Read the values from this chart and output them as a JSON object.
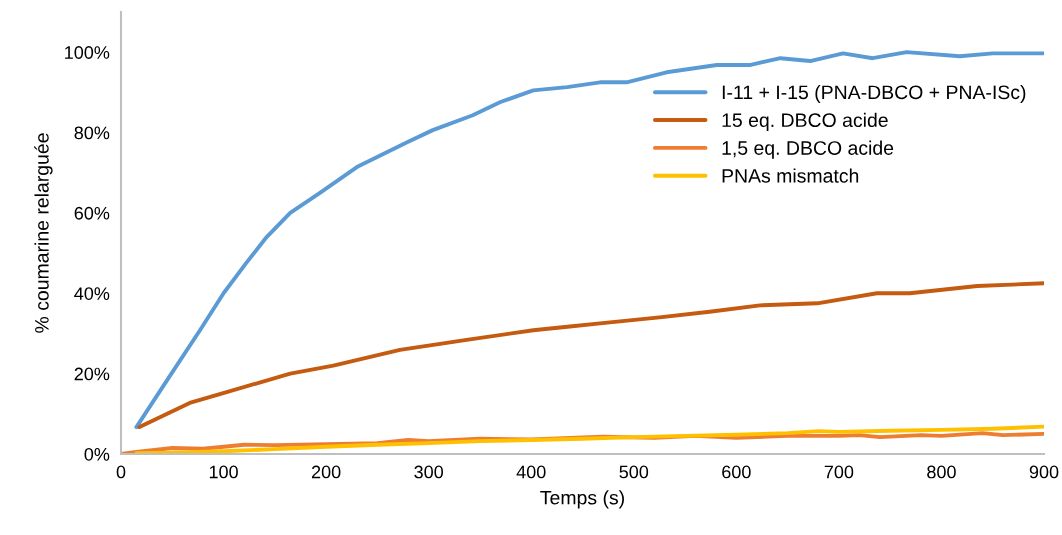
{
  "chart_data": {
    "type": "line",
    "xlabel": "Temps (s)",
    "ylabel": "% coumarine relarguée",
    "xlim": [
      0,
      900
    ],
    "xticks": [
      0,
      100,
      200,
      300,
      400,
      500,
      600,
      700,
      800,
      900
    ],
    "ylim": [
      0,
      110
    ],
    "yticks": [
      {
        "value": 0,
        "label": "0%"
      },
      {
        "value": 20,
        "label": "20%"
      },
      {
        "value": 40,
        "label": "40%"
      },
      {
        "value": 60,
        "label": "60%"
      },
      {
        "value": 80,
        "label": "80%"
      },
      {
        "value": 100,
        "label": "100%"
      }
    ],
    "grid": false,
    "legend": "right",
    "marker": "none",
    "line_style": "solid",
    "series": [
      {
        "name": "I-11 + I-15 (PNA-DBCO + PNA-ISc)",
        "color": "#5b9bd5",
        "x": [
          15,
          45,
          77,
          100,
          122,
          142,
          165,
          194,
          230,
          279,
          304,
          343,
          370,
          402,
          435,
          467,
          493,
          532,
          581,
          613,
          643,
          672,
          704,
          733,
          766,
          818,
          850,
          900
        ],
        "values": [
          6.7,
          18.4,
          30.8,
          40,
          47.5,
          54,
          60,
          65,
          71.4,
          77.6,
          80.6,
          84.3,
          87.6,
          90.5,
          91.3,
          92.5,
          92.5,
          95,
          96.8,
          96.8,
          98.5,
          97.8,
          99.7,
          98.5,
          100,
          99,
          99.7,
          99.7
        ]
      },
      {
        "name": "15 eq. DBCO acide",
        "color": "#c55a11",
        "x": [
          18,
          67,
          103,
          165,
          207,
          272,
          337,
          402,
          440,
          467,
          525,
          574,
          623,
          679,
          737,
          769,
          835,
          900
        ],
        "values": [
          6.7,
          12.7,
          15.4,
          20,
          22,
          25.9,
          28.4,
          30.8,
          31.8,
          32.5,
          34,
          35.4,
          37,
          37.5,
          40,
          40,
          41.8,
          42.5
        ]
      },
      {
        "name": "1,5 eq. DBCO acide",
        "color": "#ed7d31",
        "x": [
          0,
          15,
          50,
          80,
          120,
          150,
          250,
          280,
          300,
          350,
          400,
          470,
          520,
          560,
          600,
          650,
          700,
          720,
          740,
          780,
          800,
          840,
          860,
          900
        ],
        "values": [
          0,
          0.5,
          1.5,
          1.3,
          2.3,
          2.2,
          2.7,
          3.5,
          3.2,
          3.8,
          3.6,
          4.3,
          4.0,
          4.5,
          4.0,
          4.5,
          4.5,
          4.7,
          4.2,
          4.7,
          4.5,
          5.2,
          4.7,
          5.0
        ]
      },
      {
        "name": "PNAs mismatch",
        "color": "#ffc000",
        "x": [
          15,
          50,
          100,
          150,
          200,
          250,
          300,
          350,
          400,
          450,
          500,
          550,
          600,
          650,
          680,
          700,
          750,
          800,
          850,
          900
        ],
        "values": [
          0.2,
          0.3,
          0.7,
          1.2,
          1.8,
          2.3,
          2.7,
          3.2,
          3.5,
          3.8,
          4.2,
          4.5,
          4.8,
          5.2,
          5.7,
          5.5,
          5.8,
          6.0,
          6.3,
          6.8
        ]
      }
    ]
  }
}
